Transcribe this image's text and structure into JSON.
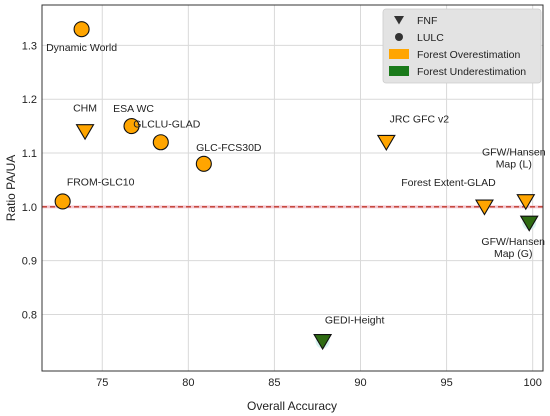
{
  "chart_data": {
    "type": "scatter",
    "title": "",
    "xlabel": "Overall Accuracy",
    "ylabel": "Ratio PA/UA",
    "xlim": [
      71.5,
      100.6
    ],
    "ylim": [
      0.695,
      1.375
    ],
    "xticks": [
      75,
      80,
      85,
      90,
      95,
      100
    ],
    "yticks": [
      0.8,
      0.9,
      1.0,
      1.1,
      1.2,
      1.3
    ],
    "xtick_labels": [
      "75",
      "80",
      "85",
      "90",
      "95",
      "100"
    ],
    "ytick_labels": [
      "0.8",
      "0.9",
      "1.0",
      "1.1",
      "1.2",
      "1.3"
    ],
    "grid": true,
    "reference_line": {
      "y": 1.0,
      "style": "dashed",
      "color": "#c0392b"
    },
    "legend": {
      "placement": "top-right",
      "entries": [
        {
          "label": "FNF",
          "marker": "triangle-down",
          "color": "#333333"
        },
        {
          "label": "LULC",
          "marker": "circle",
          "color": "#333333"
        },
        {
          "label": "Forest Overestimation",
          "marker": "patch",
          "color": "#FFA500"
        },
        {
          "label": "Forest Underestimation",
          "marker": "patch",
          "color": "#1a7a1a"
        }
      ]
    },
    "colors": {
      "over": "#FFA500",
      "under": "#2e6b12"
    },
    "points": [
      {
        "label": "Dynamic World",
        "x": 73.8,
        "y": 1.33,
        "marker": "circle",
        "class": "over"
      },
      {
        "label": "CHM",
        "x": 74.0,
        "y": 1.14,
        "marker": "triangle-down",
        "class": "over"
      },
      {
        "label": "ESA WC",
        "x": 76.7,
        "y": 1.15,
        "marker": "circle",
        "class": "over"
      },
      {
        "label": "GLCLU-GLAD",
        "x": 78.4,
        "y": 1.12,
        "marker": "circle",
        "class": "over"
      },
      {
        "label": "GLC-FCS30D",
        "x": 80.9,
        "y": 1.08,
        "marker": "circle",
        "class": "over"
      },
      {
        "label": "FROM-GLC10",
        "x": 72.7,
        "y": 1.01,
        "marker": "circle",
        "class": "over"
      },
      {
        "label": "JRC GFC v2",
        "x": 91.5,
        "y": 1.12,
        "marker": "triangle-down",
        "class": "over"
      },
      {
        "label": "Forest Extent-GLAD",
        "x": 97.2,
        "y": 1.0,
        "marker": "triangle-down",
        "class": "over"
      },
      {
        "label": "GFW/Hansen\nMap (L)",
        "x": 99.6,
        "y": 1.01,
        "marker": "triangle-down",
        "class": "over"
      },
      {
        "label": "GFW/Hansen\nMap (G)",
        "x": 99.8,
        "y": 0.97,
        "marker": "triangle-down",
        "class": "under"
      },
      {
        "label": "GEDI-Height",
        "x": 87.8,
        "y": 0.75,
        "marker": "triangle-down",
        "class": "under"
      }
    ]
  }
}
